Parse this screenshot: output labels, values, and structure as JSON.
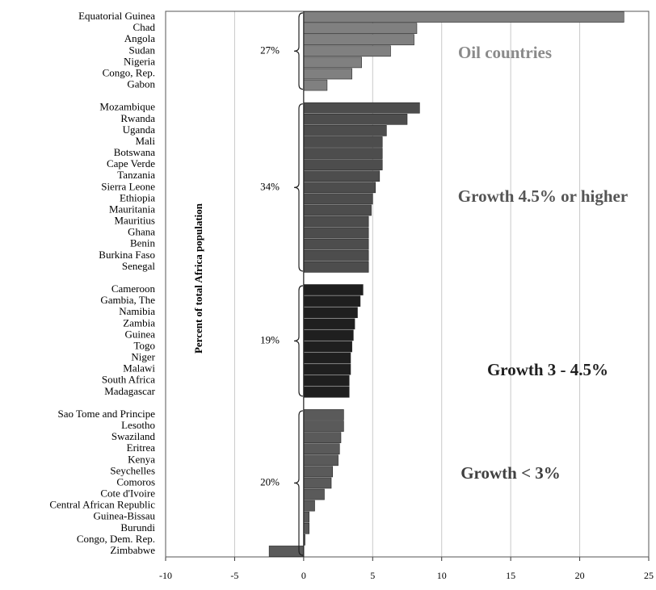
{
  "chart_data": {
    "type": "bar",
    "orientation": "horizontal",
    "y_label": "Percent of total Africa population",
    "xlim": [
      -10,
      25
    ],
    "xticks": [
      -10,
      -5,
      0,
      5,
      10,
      15,
      20,
      25
    ],
    "grid": true,
    "groups": [
      {
        "label": "Oil countries",
        "share_label": "27%",
        "color": "#808080",
        "label_color": "#8a8a8a",
        "categories": [
          "Equatorial Guinea",
          "Chad",
          "Angola",
          "Sudan",
          "Nigeria",
          "Congo, Rep.",
          "Gabon"
        ],
        "values": [
          23.2,
          8.2,
          8.0,
          6.3,
          4.2,
          3.5,
          1.7
        ]
      },
      {
        "label": "Growth 4.5% or higher",
        "share_label": "34%",
        "color": "#4d4d4d",
        "label_color": "#555555",
        "categories": [
          "Mozambique",
          "Rwanda",
          "Uganda",
          "Mali",
          "Botswana",
          "Cape Verde",
          "Tanzania",
          "Sierra Leone",
          "Ethiopia",
          "Mauritania",
          "Mauritius",
          "Ghana",
          "Benin",
          "Burkina Faso",
          "Senegal"
        ],
        "values": [
          8.4,
          7.5,
          6.0,
          5.7,
          5.7,
          5.7,
          5.5,
          5.2,
          5.0,
          4.9,
          4.7,
          4.7,
          4.7,
          4.7,
          4.7
        ]
      },
      {
        "label": "Growth 3 - 4.5%",
        "share_label": "19%",
        "color": "#1f1f1f",
        "label_color": "#1f1f1f",
        "categories": [
          "Cameroon",
          "Gambia, The",
          "Namibia",
          "Zambia",
          "Guinea",
          "Togo",
          "Niger",
          "Malawi",
          "South Africa",
          "Madagascar"
        ],
        "values": [
          4.3,
          4.1,
          3.9,
          3.7,
          3.6,
          3.5,
          3.4,
          3.4,
          3.3,
          3.3
        ]
      },
      {
        "label": "Growth < 3%",
        "share_label": "20%",
        "color": "#5a5a5a",
        "label_color": "#404040",
        "categories": [
          "Sao Tome and Principe",
          "Lesotho",
          "Swaziland",
          "Eritrea",
          "Kenya",
          "Seychelles",
          "Comoros",
          "Cote d'Ivoire",
          "Central African Republic",
          "Guinea-Bissau",
          "Burundi",
          "Congo, Dem. Rep.",
          "Zimbabwe"
        ],
        "values": [
          2.9,
          2.9,
          2.7,
          2.6,
          2.5,
          2.1,
          2.0,
          1.5,
          0.8,
          0.4,
          0.4,
          0.1,
          -2.5
        ]
      }
    ]
  }
}
